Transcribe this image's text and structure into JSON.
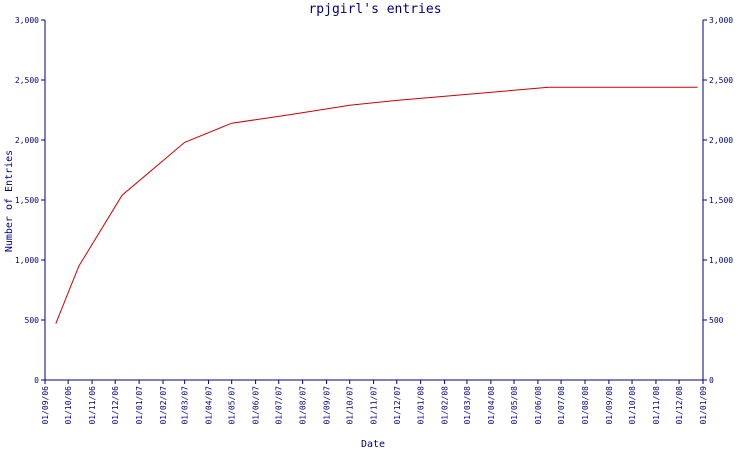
{
  "chart_data": {
    "type": "line",
    "title": "rpjgirl's entries",
    "xlabel": "Date",
    "ylabel": "Number of Entries",
    "ylim": [
      0,
      3000
    ],
    "y_ticks": [
      "0",
      "500",
      "1,000",
      "1,500",
      "2,000",
      "2,500",
      "3,000"
    ],
    "x_ticks": [
      "01/09/06",
      "01/10/06",
      "01/11/06",
      "01/12/06",
      "01/01/07",
      "01/02/07",
      "01/03/07",
      "01/04/07",
      "01/05/07",
      "01/06/07",
      "01/07/07",
      "01/08/07",
      "01/09/07",
      "01/10/07",
      "01/11/07",
      "01/12/07",
      "01/01/08",
      "01/02/08",
      "01/03/08",
      "01/04/08",
      "01/05/08",
      "01/06/08",
      "01/07/08",
      "01/08/08",
      "01/09/08",
      "01/10/08",
      "01/11/08",
      "01/12/08",
      "01/01/09"
    ],
    "grid": false,
    "colors": {
      "text": "#000080",
      "axis": "#000080",
      "line": "#cc0000"
    },
    "series": [
      {
        "x": [
          "2006-09-15",
          "2006-10-15",
          "2006-12-10",
          "2007-03-01",
          "2007-05-01",
          "2007-07-15",
          "2007-10-01",
          "2007-12-01",
          "2008-03-01",
          "2008-06-15",
          "2008-12-25"
        ],
        "values": [
          470,
          950,
          1540,
          1980,
          2140,
          2210,
          2290,
          2330,
          2380,
          2440,
          2440
        ]
      }
    ]
  }
}
